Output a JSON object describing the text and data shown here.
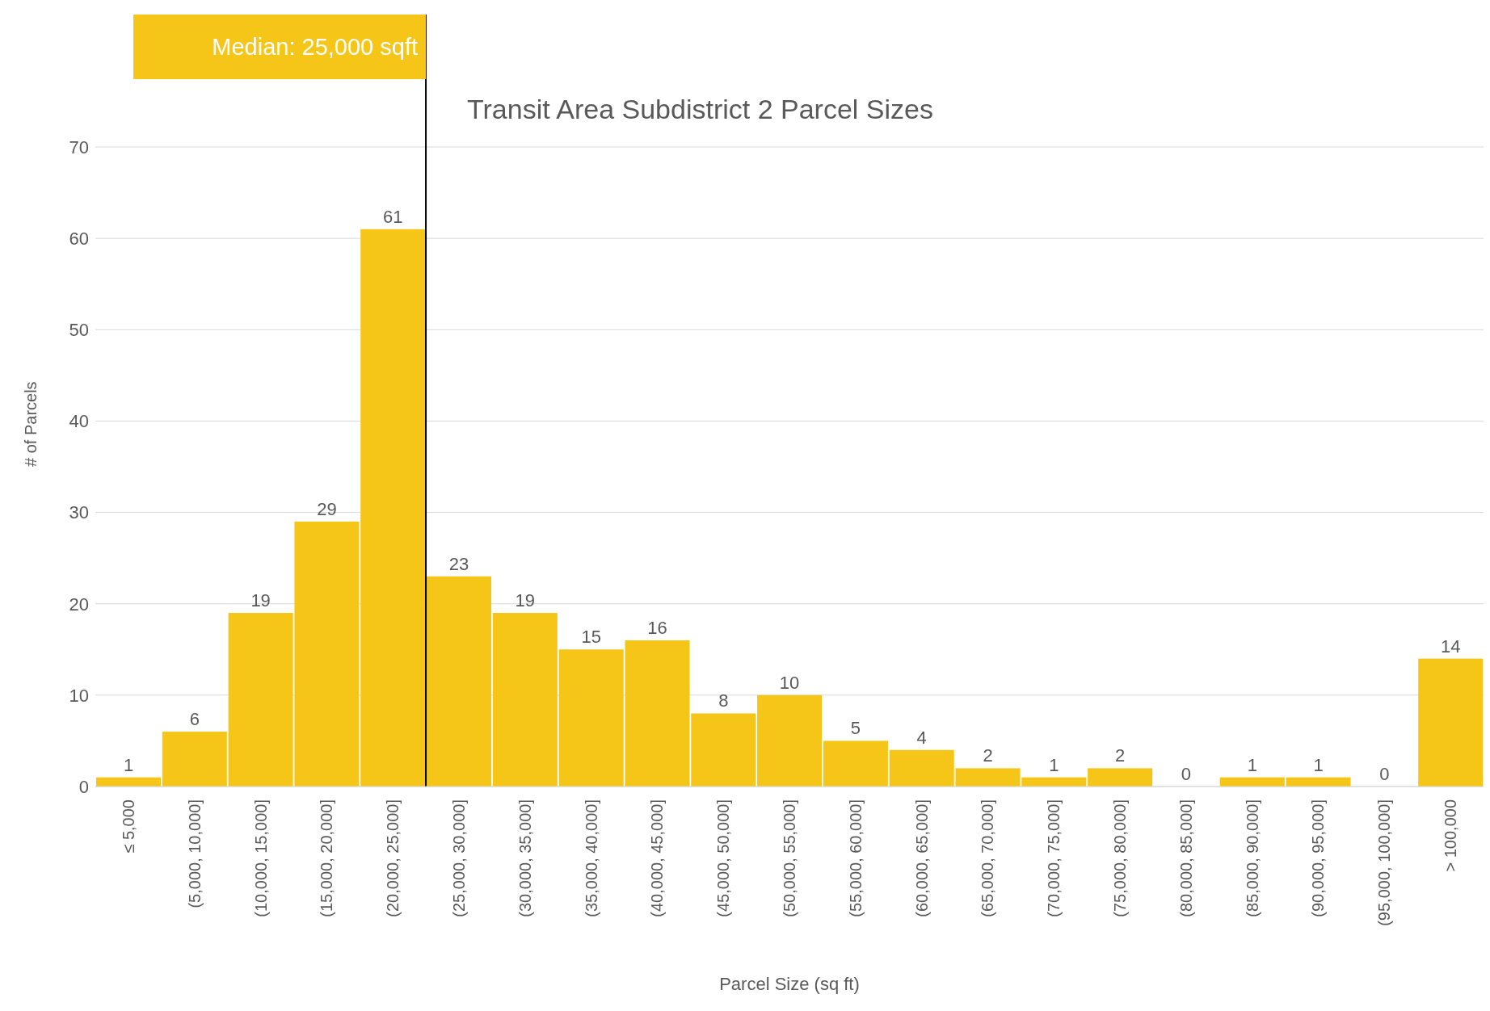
{
  "chart_data": {
    "type": "bar",
    "title": "Transit Area Subdistrict 2 Parcel Sizes",
    "xlabel": "Parcel Size (sq ft)",
    "ylabel": "# of Parcels",
    "categories": [
      "≤ 5,000",
      "(5,000, 10,000]",
      "(10,000, 15,000]",
      "(15,000, 20,000]",
      "(20,000, 25,000]",
      "(25,000, 30,000]",
      "(30,000, 35,000]",
      "(35,000, 40,000]",
      "(40,000, 45,000]",
      "(45,000, 50,000]",
      "(50,000, 55,000]",
      "(55,000, 60,000]",
      "(60,000, 65,000]",
      "(65,000, 70,000]",
      "(70,000, 75,000]",
      "(75,000, 80,000]",
      "(80,000, 85,000]",
      "(85,000, 90,000]",
      "(90,000, 95,000]",
      "(95,000, 100,000]",
      "> 100,000"
    ],
    "values": [
      1,
      6,
      19,
      29,
      61,
      23,
      19,
      15,
      16,
      8,
      10,
      5,
      4,
      2,
      1,
      2,
      0,
      1,
      1,
      0,
      14
    ],
    "color": "#f5c518",
    "ylim": [
      0,
      70
    ],
    "yticks": [
      0,
      10,
      20,
      30,
      40,
      50,
      60,
      70
    ],
    "grid": "y",
    "data_labels": true,
    "ref_lines": [
      {
        "axis": "x",
        "value": "(20,000, 25,000]",
        "label": "Median: 25,000 sqft",
        "color": "#000000"
      }
    ]
  }
}
